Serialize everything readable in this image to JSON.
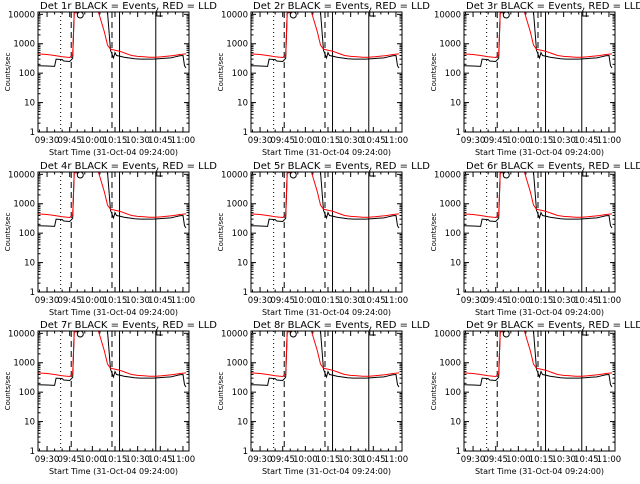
{
  "chart_data": [
    {
      "type": "line",
      "title": "Det 1r BLACK = Events, RED = LLD",
      "xlabel": "Start Time (31-Oct-04 09:24:00)",
      "ylabel": "Counts/sec"
    },
    {
      "type": "line",
      "title": "Det 2r BLACK = Events, RED = LLD",
      "xlabel": "Start Time (31-Oct-04 09:24:00)",
      "ylabel": "Counts/sec"
    },
    {
      "type": "line",
      "title": "Det 3r BLACK = Events, RED = LLD",
      "xlabel": "Start Time (31-Oct-04 09:24:00)",
      "ylabel": "Counts/sec"
    },
    {
      "type": "line",
      "title": "Det 4r BLACK = Events, RED = LLD",
      "xlabel": "Start Time (31-Oct-04 09:24:00)",
      "ylabel": "Counts/sec"
    },
    {
      "type": "line",
      "title": "Det 5r BLACK = Events, RED = LLD",
      "xlabel": "Start Time (31-Oct-04 09:24:00)",
      "ylabel": "Counts/sec"
    },
    {
      "type": "line",
      "title": "Det 6r BLACK = Events, RED = LLD",
      "xlabel": "Start Time (31-Oct-04 09:24:00)",
      "ylabel": "Counts/sec"
    },
    {
      "type": "line",
      "title": "Det 7r BLACK = Events, RED = LLD",
      "xlabel": "Start Time (31-Oct-04 09:24:00)",
      "ylabel": "Counts/sec"
    },
    {
      "type": "line",
      "title": "Det 8r BLACK = Events, RED = LLD",
      "xlabel": "Start Time (31-Oct-04 09:24:00)",
      "ylabel": "Counts/sec"
    },
    {
      "type": "line",
      "title": "Det 9r BLACK = Events, RED = LLD",
      "xlabel": "Start Time (31-Oct-04 09:24:00)",
      "ylabel": "Counts/sec"
    }
  ],
  "shared": {
    "x_tick_labels": [
      "09:30",
      "09:45",
      "10:00",
      "10:15",
      "10:30",
      "10:45",
      "11:00"
    ],
    "x_tick_values": [
      "09:30",
      "09:45",
      "10:00",
      "10:15",
      "10:30",
      "10:45",
      "11:00"
    ],
    "xlim": [
      "09:24",
      "11:04"
    ],
    "y_tick_labels": [
      "1",
      "10",
      "100",
      "1000",
      "10000"
    ],
    "y_tick_values": [
      1,
      10,
      100,
      1000,
      10000
    ],
    "ylim": [
      1,
      12000
    ],
    "y_scale": "log",
    "vlines": [
      {
        "x": "09:39",
        "style": "dotted"
      },
      {
        "x": "09:46",
        "style": "dashed"
      },
      {
        "x": "10:13",
        "style": "dashed"
      },
      {
        "x": "10:18",
        "style": "solid"
      },
      {
        "x": "10:42",
        "style": "solid"
      }
    ],
    "series": [
      {
        "color": "#000000",
        "x": [
          "09:24",
          "09:30",
          "09:35",
          "09:36",
          "09:40",
          "09:41",
          "09:45",
          "09:47",
          "09:48",
          "09:50",
          "10:00",
          "10:10",
          "10:12",
          "10:14",
          "10:15",
          "10:16",
          "10:18",
          "10:21",
          "10:24",
          "10:28",
          "10:32",
          "10:36",
          "10:40",
          "10:44",
          "10:48",
          "10:52",
          "10:55",
          "10:58",
          "11:00",
          "11:01",
          "11:02"
        ],
        "y": [
          180,
          175,
          170,
          300,
          290,
          260,
          250,
          320,
          11000,
          12000,
          12000,
          12000,
          600,
          330,
          500,
          400,
          380,
          350,
          330,
          310,
          300,
          300,
          300,
          310,
          320,
          330,
          360,
          390,
          400,
          180,
          150
        ]
      },
      {
        "color": "#ff0000",
        "x": [
          "09:24",
          "09:30",
          "09:35",
          "09:40",
          "09:45",
          "09:47",
          "09:48",
          "09:50",
          "10:00",
          "10:04",
          "10:08",
          "10:10",
          "10:12",
          "10:14",
          "10:18",
          "10:22",
          "10:26",
          "10:30",
          "10:34",
          "10:38",
          "10:42",
          "10:46",
          "10:50",
          "10:54",
          "10:58",
          "11:02"
        ],
        "y": [
          450,
          430,
          400,
          360,
          340,
          420,
          11000,
          12000,
          12000,
          12000,
          2500,
          900,
          650,
          620,
          560,
          470,
          400,
          370,
          360,
          350,
          350,
          360,
          380,
          400,
          430,
          450
        ]
      }
    ],
    "markers": [
      {
        "x": "09:52",
        "y": 9500,
        "shape": "circle"
      },
      {
        "x": "10:42",
        "y": 9500,
        "shape": "L"
      }
    ]
  }
}
